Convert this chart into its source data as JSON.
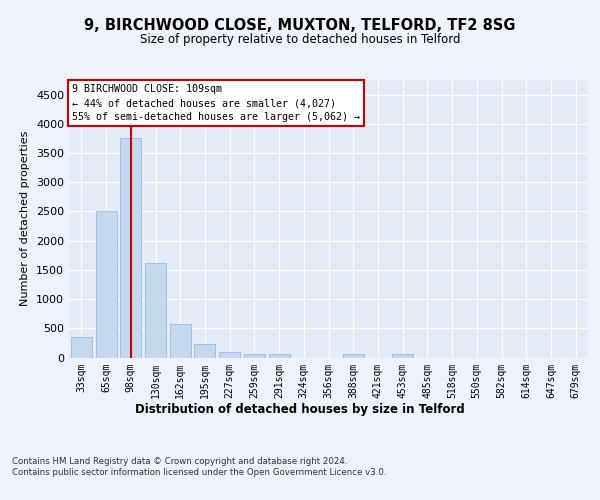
{
  "title1": "9, BIRCHWOOD CLOSE, MUXTON, TELFORD, TF2 8SG",
  "title2": "Size of property relative to detached houses in Telford",
  "xlabel": "Distribution of detached houses by size in Telford",
  "ylabel": "Number of detached properties",
  "categories": [
    "33sqm",
    "65sqm",
    "98sqm",
    "130sqm",
    "162sqm",
    "195sqm",
    "227sqm",
    "259sqm",
    "291sqm",
    "324sqm",
    "356sqm",
    "388sqm",
    "421sqm",
    "453sqm",
    "485sqm",
    "518sqm",
    "550sqm",
    "582sqm",
    "614sqm",
    "647sqm",
    "679sqm"
  ],
  "values": [
    350,
    2500,
    3750,
    1625,
    575,
    225,
    100,
    55,
    55,
    0,
    0,
    55,
    0,
    55,
    0,
    0,
    0,
    0,
    0,
    0,
    0
  ],
  "bar_color": "#c5d8f0",
  "bar_edgecolor": "#8ab4d9",
  "vline_x": 2,
  "vline_color": "#cc0000",
  "ylim": [
    0,
    4750
  ],
  "yticks": [
    0,
    500,
    1000,
    1500,
    2000,
    2500,
    3000,
    3500,
    4000,
    4500
  ],
  "annotation_text": "9 BIRCHWOOD CLOSE: 109sqm\n← 44% of detached houses are smaller (4,027)\n55% of semi-detached houses are larger (5,062) →",
  "annotation_box_color": "#ffffff",
  "annotation_box_edgecolor": "#cc0000",
  "footer_text": "Contains HM Land Registry data © Crown copyright and database right 2024.\nContains public sector information licensed under the Open Government Licence v3.0.",
  "background_color": "#eef2fb",
  "plot_bg_color": "#e4eaf7"
}
